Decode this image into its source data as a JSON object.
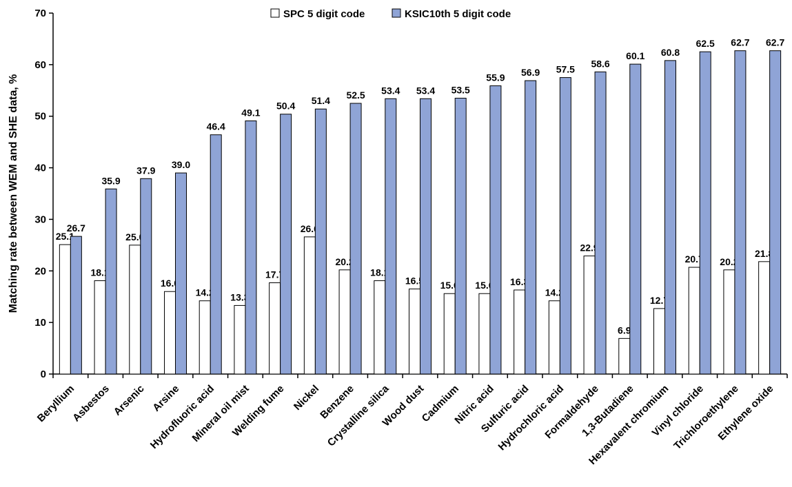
{
  "chart_data": {
    "type": "bar",
    "ylabel": "Matching rate between WEM and SHE data, %",
    "xlabel": "",
    "ylim": [
      0,
      70
    ],
    "yticks": [
      0,
      10,
      20,
      30,
      40,
      50,
      60,
      70
    ],
    "grid": false,
    "legend_position": "top",
    "categories": [
      "Beryllium",
      "Asbestos",
      "Arsenic",
      "Arsine",
      "Hydrofluoric acid",
      "Mineral oil mist",
      "Welding fume",
      "Nickel",
      "Benzene",
      "Crystalline silica",
      "Wood dust",
      "Cadmium",
      "Nitric acid",
      "Sulfuric acid",
      "Hydrochloric acid",
      "Formaldehyde",
      "1,3-Butadiene",
      "Hexavalent chromium",
      "Vinyl chloride",
      "Trichloroethylene",
      "Ethylene oxide"
    ],
    "series": [
      {
        "name": "SPC 5 digit code",
        "color": "#ffffff",
        "values": [
          25.1,
          18.1,
          25.0,
          16.0,
          14.2,
          13.3,
          17.7,
          26.6,
          20.2,
          18.1,
          16.5,
          15.6,
          15.6,
          16.3,
          14.2,
          22.9,
          6.9,
          12.7,
          20.7,
          20.2,
          21.8
        ]
      },
      {
        "name": "KSIC10th 5 digit code",
        "color": "#8fa4d6",
        "values": [
          26.7,
          35.9,
          37.9,
          39.0,
          46.4,
          49.1,
          50.4,
          51.4,
          52.5,
          53.4,
          53.4,
          53.5,
          55.9,
          56.9,
          57.5,
          58.6,
          60.1,
          60.8,
          62.5,
          62.7,
          62.7
        ]
      }
    ]
  }
}
